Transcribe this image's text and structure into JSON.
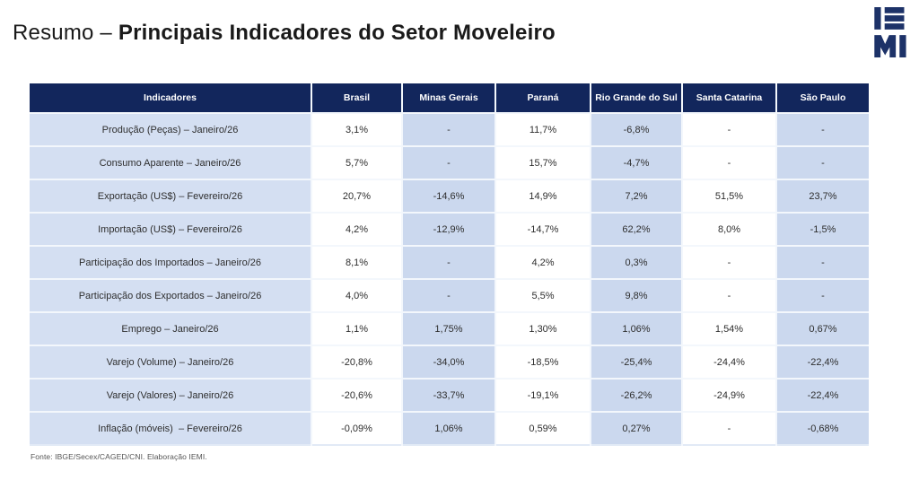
{
  "title": {
    "prefix": "Resumo – ",
    "main": "Principais Indicadores do Setor Moveleiro"
  },
  "logo": {
    "text": "IEMI"
  },
  "table": {
    "columns": [
      "Indicadores",
      "Brasil",
      "Minas Gerais",
      "Paraná",
      "Rio Grande do Sul",
      "Santa Catarina",
      "São Paulo"
    ],
    "rows": [
      {
        "label": "Produção (Peças) – Janeiro/26",
        "values": [
          "3,1%",
          "-",
          "11,7%",
          "-6,8%",
          "-",
          "-"
        ]
      },
      {
        "label": "Consumo Aparente – Janeiro/26",
        "values": [
          "5,7%",
          "-",
          "15,7%",
          "-4,7%",
          "-",
          "-"
        ]
      },
      {
        "label": "Exportação (US$) – Fevereiro/26",
        "values": [
          "20,7%",
          "-14,6%",
          "14,9%",
          "7,2%",
          "51,5%",
          "23,7%"
        ]
      },
      {
        "label": "Importação (US$) – Fevereiro/26",
        "values": [
          "4,2%",
          "-12,9%",
          "-14,7%",
          "62,2%",
          "8,0%",
          "-1,5%"
        ]
      },
      {
        "label": "Participação dos Importados – Janeiro/26",
        "values": [
          "8,1%",
          "-",
          "4,2%",
          "0,3%",
          "-",
          "-"
        ]
      },
      {
        "label": "Participação dos Exportados – Janeiro/26",
        "values": [
          "4,0%",
          "-",
          "5,5%",
          "9,8%",
          "-",
          "-"
        ]
      },
      {
        "label": "Emprego – Janeiro/26",
        "values": [
          "1,1%",
          "1,75%",
          "1,30%",
          "1,06%",
          "1,54%",
          "0,67%"
        ]
      },
      {
        "label": "Varejo (Volume) – Janeiro/26",
        "values": [
          "-20,8%",
          "-34,0%",
          "-18,5%",
          "-25,4%",
          "-24,4%",
          "-22,4%"
        ]
      },
      {
        "label": "Varejo (Valores) – Janeiro/26",
        "values": [
          "-20,6%",
          "-33,7%",
          "-19,1%",
          "-26,2%",
          "-24,9%",
          "-22,4%"
        ]
      },
      {
        "label": "Inflação (móveis)  – Fevereiro/26",
        "values": [
          "-0,09%",
          "1,06%",
          "0,59%",
          "0,27%",
          "-",
          "-0,68%"
        ]
      }
    ]
  },
  "footer": {
    "source": "Fonte: IBGE/Secex/CAGED/CNI. Elaboração IEMI."
  },
  "colors": {
    "header_bg": "#12265c",
    "label_column_bg": "#d4dff2",
    "alt_column_bg": "#cbd8ee",
    "white_column_bg": "#ffffff",
    "logo": "#1d3268"
  }
}
